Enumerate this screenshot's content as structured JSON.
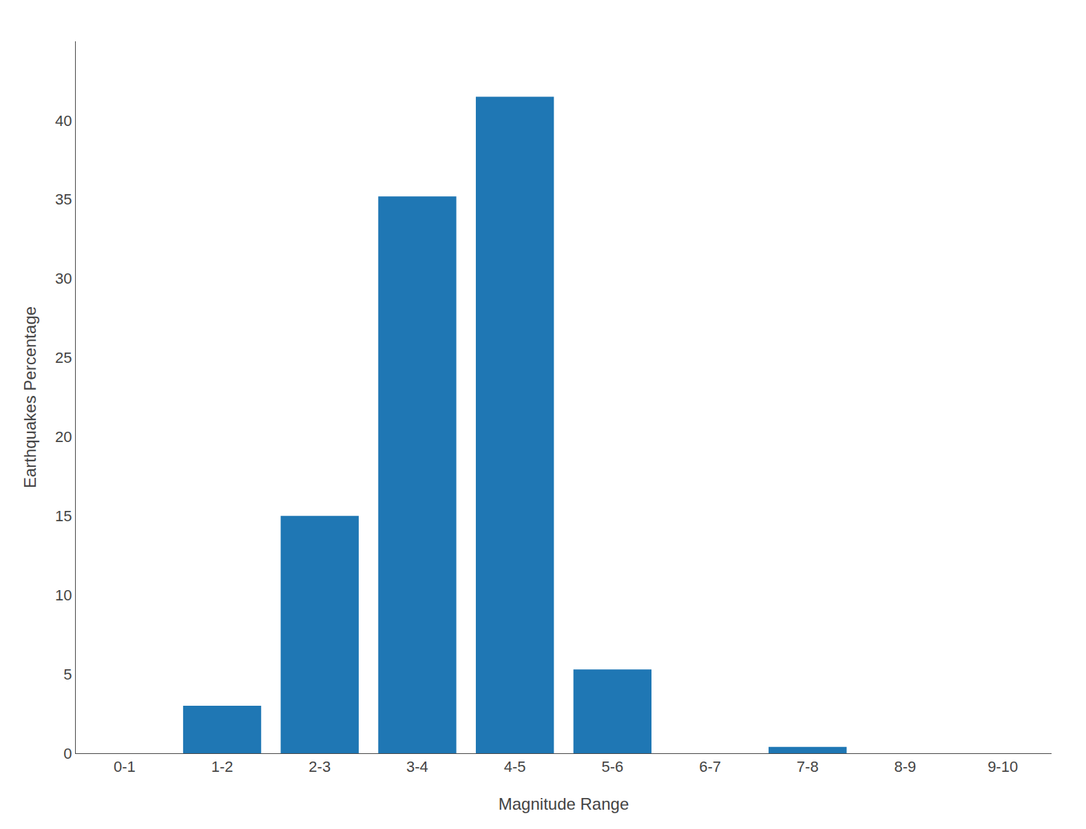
{
  "chart_data": {
    "type": "bar",
    "categories": [
      "0-1",
      "1-2",
      "2-3",
      "3-4",
      "4-5",
      "5-6",
      "6-7",
      "7-8",
      "8-9",
      "9-10"
    ],
    "values": [
      0,
      3.0,
      15.0,
      35.2,
      41.5,
      5.3,
      0,
      0.4,
      0,
      0
    ],
    "xlabel": "Magnitude Range",
    "ylabel": "Earthquakes Percentage",
    "ylim": [
      0,
      45
    ],
    "yticks": [
      0,
      5,
      10,
      15,
      20,
      25,
      30,
      35,
      40
    ],
    "grid": false
  }
}
